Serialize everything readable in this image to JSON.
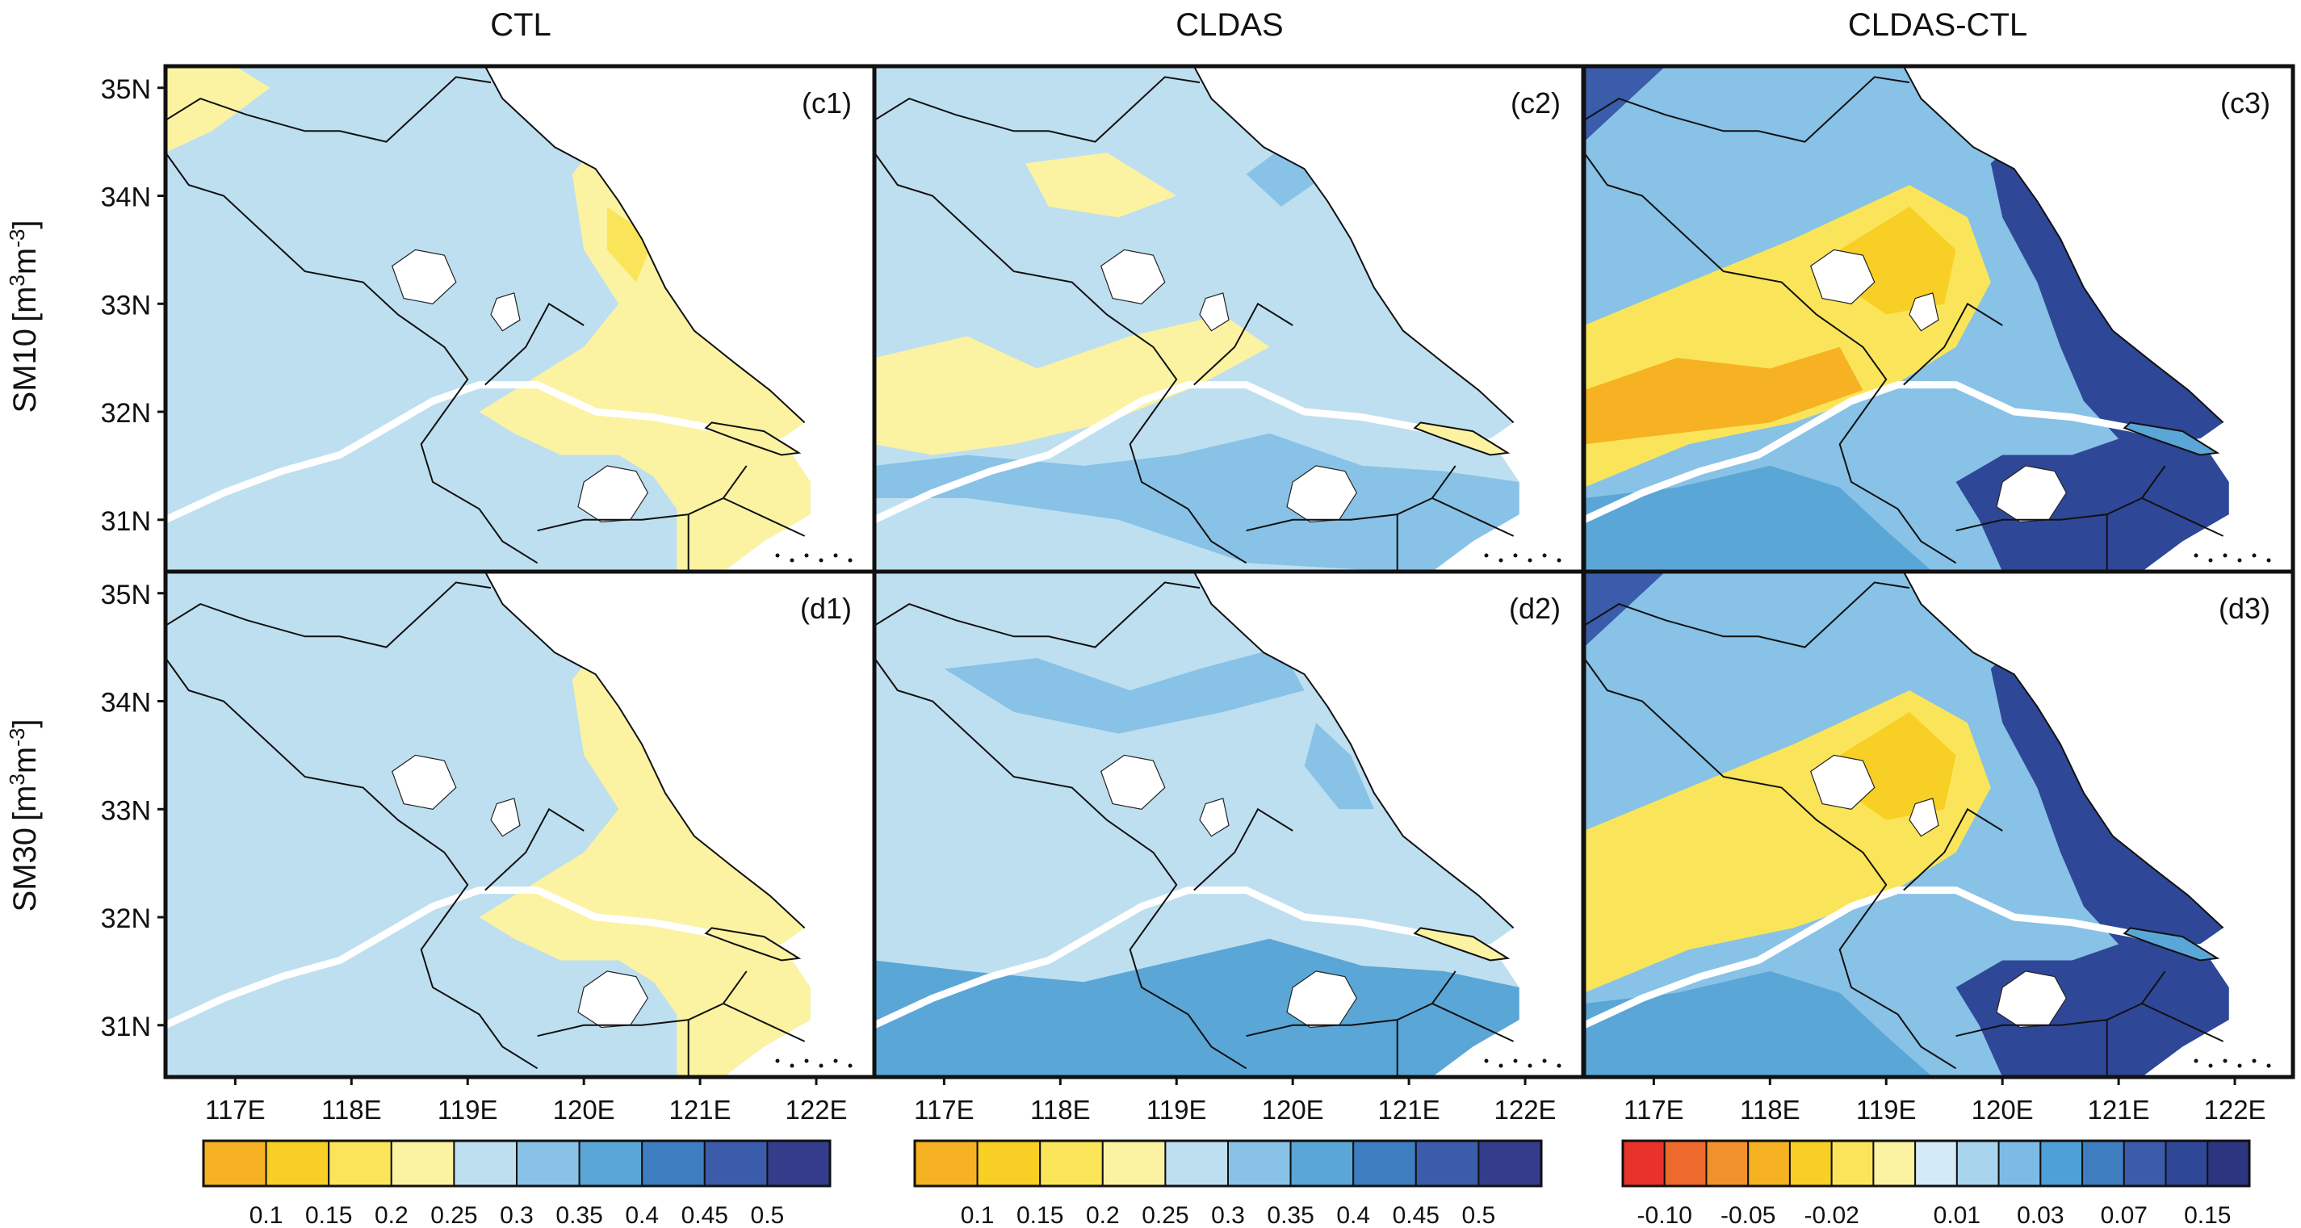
{
  "columns": [
    "CTL",
    "CLDAS",
    "CLDAS-CTL"
  ],
  "rows": [
    {
      "var": "SM10",
      "unit": "[m",
      "sup1": "3",
      "mid": "m",
      "sup2": "-3",
      "close": "]"
    },
    {
      "var": "SM30",
      "unit": "[m",
      "sup1": "3",
      "mid": "m",
      "sup2": "-3",
      "close": "]"
    }
  ],
  "panel_labels": [
    [
      "(c1)",
      "(c2)",
      "(c3)"
    ],
    [
      "(d1)",
      "(d2)",
      "(d3)"
    ]
  ],
  "lat_labels": [
    "35N",
    "34N",
    "33N",
    "32N",
    "31N"
  ],
  "lat_values": [
    35,
    34,
    33,
    32,
    31
  ],
  "lat_range": [
    30.52,
    35.2
  ],
  "lon_labels": [
    "117E",
    "118E",
    "119E",
    "120E",
    "121E",
    "122E"
  ],
  "lon_values": [
    117,
    118,
    119,
    120,
    121,
    122
  ],
  "lon_range": [
    116.4,
    122.5
  ],
  "colorbars": [
    {
      "name": "sm",
      "labels": [
        "0.1",
        "0.15",
        "0.2",
        "0.25",
        "0.3",
        "0.35",
        "0.4",
        "0.45",
        "0.5"
      ],
      "colors": [
        "#f6b222",
        "#f8cf24",
        "#fae55a",
        "#fbf3a2",
        "#bedff0",
        "#88c2e6",
        "#5aa6d7",
        "#3e7ec0",
        "#3a5cab",
        "#343d8b"
      ]
    },
    {
      "name": "sm",
      "labels": [
        "0.1",
        "0.15",
        "0.2",
        "0.25",
        "0.3",
        "0.35",
        "0.4",
        "0.45",
        "0.5"
      ],
      "colors": [
        "#f6b222",
        "#f8cf24",
        "#fae55a",
        "#fbf3a2",
        "#bedff0",
        "#88c2e6",
        "#5aa6d7",
        "#3e7ec0",
        "#3a5cab",
        "#343d8b"
      ]
    },
    {
      "name": "diff",
      "labels": [
        "-0.10",
        "-0.05",
        "-0.02",
        "0.01",
        "0.03",
        "0.07",
        "0.15"
      ],
      "colors": [
        "#e9322a",
        "#ee6a2c",
        "#f1912e",
        "#f6b222",
        "#f8cf24",
        "#fae55a",
        "#fbf3a2",
        "#d2ebf6",
        "#a8d4ee",
        "#7dbbe6",
        "#4da0d8",
        "#3e7ec0",
        "#3a5cab",
        "#2f4797",
        "#2c3580"
      ]
    }
  ],
  "colors": {
    "sm_dry": "#fbf3a2",
    "sm_yellow": "#fae55a",
    "sm_light_blue": "#bedff0",
    "sm_blue": "#88c2e6",
    "sm_mid_blue": "#5aa6d7",
    "sm_dark_blue": "#3a5cab",
    "diff_orange": "#f6b222",
    "diff_yellow": "#f8cf24",
    "diff_navy": "#2f4797",
    "frame": "#111111",
    "water": "#ffffff"
  }
}
